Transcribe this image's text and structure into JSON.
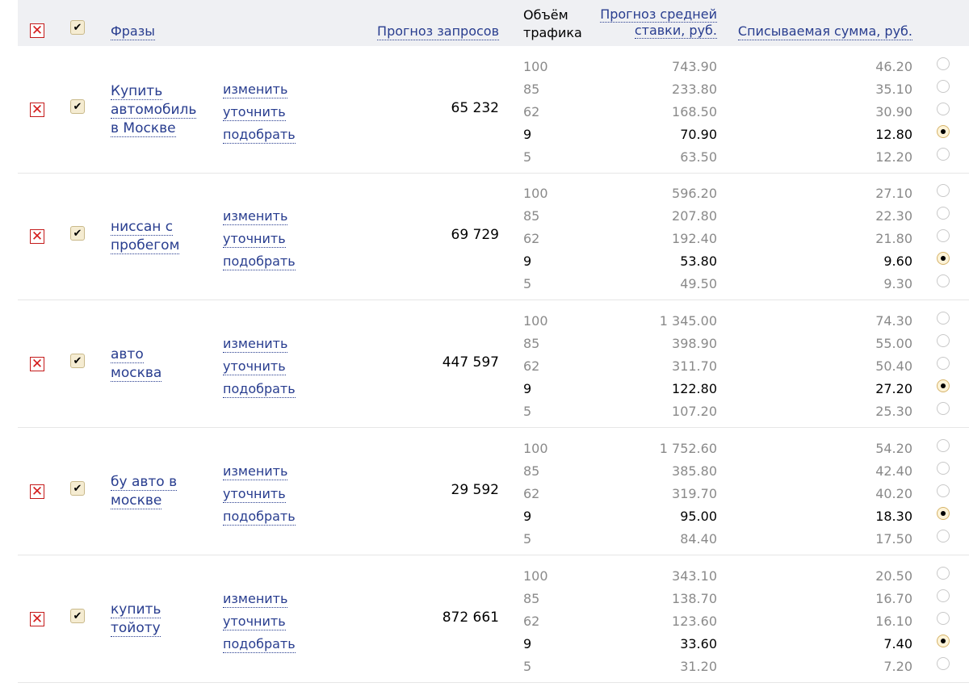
{
  "header": {
    "phrases": "Фразы",
    "forecast": "Прогноз запросов",
    "traffic_line1": "Объём",
    "traffic_line2": "трафика",
    "bid_line1": "Прогноз средней",
    "bid_line2": "ставки, руб.",
    "charge": "Списываемая сумма, руб."
  },
  "actions": [
    "изменить",
    "уточнить",
    "подобрать"
  ],
  "rows": [
    {
      "phrase_lines": [
        "Купить",
        "автомобиль",
        "в Москве"
      ],
      "forecast": "65 232",
      "options": [
        [
          "100",
          "743.90",
          "46.20"
        ],
        [
          "85",
          "233.80",
          "35.10"
        ],
        [
          "62",
          "168.50",
          "30.90"
        ],
        [
          "9",
          "70.90",
          "12.80"
        ],
        [
          "5",
          "63.50",
          "12.20"
        ]
      ],
      "selected": 3
    },
    {
      "phrase_lines": [
        "ниссан с",
        "пробегом"
      ],
      "forecast": "69 729",
      "options": [
        [
          "100",
          "596.20",
          "27.10"
        ],
        [
          "85",
          "207.80",
          "22.30"
        ],
        [
          "62",
          "192.40",
          "21.80"
        ],
        [
          "9",
          "53.80",
          "9.60"
        ],
        [
          "5",
          "49.50",
          "9.30"
        ]
      ],
      "selected": 3
    },
    {
      "phrase_lines": [
        "авто",
        "москва"
      ],
      "forecast": "447 597",
      "options": [
        [
          "100",
          "1 345.00",
          "74.30"
        ],
        [
          "85",
          "398.90",
          "55.00"
        ],
        [
          "62",
          "311.70",
          "50.40"
        ],
        [
          "9",
          "122.80",
          "27.20"
        ],
        [
          "5",
          "107.20",
          "25.30"
        ]
      ],
      "selected": 3
    },
    {
      "phrase_lines": [
        "бу авто в",
        "москве"
      ],
      "forecast": "29 592",
      "options": [
        [
          "100",
          "1 752.60",
          "54.20"
        ],
        [
          "85",
          "385.80",
          "42.40"
        ],
        [
          "62",
          "319.70",
          "40.20"
        ],
        [
          "9",
          "95.00",
          "18.30"
        ],
        [
          "5",
          "84.40",
          "17.50"
        ]
      ],
      "selected": 3
    },
    {
      "phrase_lines": [
        "купить",
        "тойоту"
      ],
      "forecast": "872 661",
      "options": [
        [
          "100",
          "343.10",
          "20.50"
        ],
        [
          "85",
          "138.70",
          "16.70"
        ],
        [
          "62",
          "123.60",
          "16.10"
        ],
        [
          "9",
          "33.60",
          "7.40"
        ],
        [
          "5",
          "31.20",
          "7.20"
        ]
      ],
      "selected": 3
    }
  ],
  "icons": {
    "remove": "close-x-icon",
    "select": "checkmark-icon",
    "option": "radio-icon"
  },
  "colors": {
    "link": "#283d8f",
    "remove": "#d41b1b",
    "header_bg": "#eff0f3",
    "muted": "#8a8a8a"
  }
}
